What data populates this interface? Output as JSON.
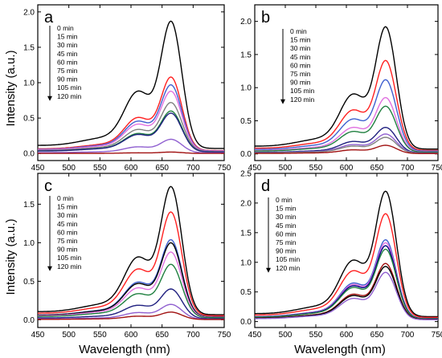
{
  "figure": {
    "xlabel": "Wavelength (nm)",
    "ylabel": "Intensity (a.u.)"
  },
  "chart_data": [
    {
      "panel": "a",
      "type": "line",
      "xlim": [
        450,
        750
      ],
      "ylim": [
        -0.1,
        2.1
      ],
      "xticks": [
        "450",
        "500",
        "550",
        "600",
        "650",
        "700",
        "750"
      ],
      "yticks": [
        "0.0",
        "0.5",
        "1.0",
        "1.5",
        "2.0"
      ],
      "legend": [
        "0 min",
        "15 min",
        "30 min",
        "45 min",
        "60 min",
        "75 min",
        "90 min",
        "105 min",
        "120 min"
      ],
      "series": [
        {
          "name": "0 min",
          "color": "#000000",
          "peak": 1.87
        },
        {
          "name": "15 min",
          "color": "#ff2020",
          "peak": 1.08
        },
        {
          "name": "30 min",
          "color": "#4060d0",
          "peak": 0.97
        },
        {
          "name": "45 min",
          "color": "#e070e0",
          "peak": 0.88
        },
        {
          "name": "60 min",
          "color": "#808080",
          "peak": 0.72
        },
        {
          "name": "75 min",
          "color": "#208040",
          "peak": 0.6
        },
        {
          "name": "90 min",
          "color": "#202080",
          "peak": 0.57
        },
        {
          "name": "105 min",
          "color": "#9060d0",
          "peak": 0.2
        },
        {
          "name": "120 min",
          "color": "#a01010",
          "peak": 0.02
        }
      ]
    },
    {
      "panel": "b",
      "type": "line",
      "xlim": [
        450,
        750
      ],
      "ylim": [
        -0.1,
        2.25
      ],
      "xticks": [
        "450",
        "500",
        "550",
        "600",
        "650",
        "700",
        "750"
      ],
      "yticks": [
        "0.0",
        "0.5",
        "1.0",
        "1.5",
        "2.0"
      ],
      "legend": [
        "0 min",
        "15 min",
        "30 min",
        "45 min",
        "60 min",
        "75 min",
        "90 min",
        "105 min",
        "120 min"
      ],
      "series": [
        {
          "name": "0 min",
          "color": "#000000",
          "peak": 1.92
        },
        {
          "name": "15 min",
          "color": "#ff2020",
          "peak": 1.41
        },
        {
          "name": "30 min",
          "color": "#4060d0",
          "peak": 1.12
        },
        {
          "name": "45 min",
          "color": "#e070e0",
          "peak": 0.85
        },
        {
          "name": "60 min",
          "color": "#208040",
          "peak": 0.72
        },
        {
          "name": "75 min",
          "color": "#202080",
          "peak": 0.4
        },
        {
          "name": "90 min",
          "color": "#9060d0",
          "peak": 0.3
        },
        {
          "name": "105 min",
          "color": "#808080",
          "peak": 0.25
        },
        {
          "name": "120 min",
          "color": "#a01010",
          "peak": 0.13
        }
      ]
    },
    {
      "panel": "c",
      "type": "line",
      "xlim": [
        450,
        750
      ],
      "ylim": [
        -0.1,
        1.9
      ],
      "xticks": [
        "450",
        "500",
        "550",
        "600",
        "650",
        "700",
        "750"
      ],
      "yticks": [
        "0.0",
        "0.5",
        "1.0",
        "1.5"
      ],
      "legend": [
        "0 min",
        "15 min",
        "30 min",
        "45 min",
        "60 min",
        "75 min",
        "90 min",
        "105 min",
        "120 min"
      ],
      "series": [
        {
          "name": "0 min",
          "color": "#000000",
          "peak": 1.73
        },
        {
          "name": "15 min",
          "color": "#ff2020",
          "peak": 1.4
        },
        {
          "name": "30 min",
          "color": "#4060d0",
          "peak": 1.04
        },
        {
          "name": "45 min",
          "color": "#000000",
          "peak": 1.0
        },
        {
          "name": "60 min",
          "color": "#e070e0",
          "peak": 0.88
        },
        {
          "name": "75 min",
          "color": "#208040",
          "peak": 0.72
        },
        {
          "name": "90 min",
          "color": "#202080",
          "peak": 0.4
        },
        {
          "name": "105 min",
          "color": "#9060d0",
          "peak": 0.2
        },
        {
          "name": "120 min",
          "color": "#a01010",
          "peak": 0.1
        }
      ]
    },
    {
      "panel": "d",
      "type": "line",
      "xlim": [
        450,
        750
      ],
      "ylim": [
        -0.1,
        2.5
      ],
      "xticks": [
        "450",
        "500",
        "550",
        "600",
        "650",
        "700",
        "750"
      ],
      "yticks": [
        "0.0",
        "0.5",
        "1.0",
        "1.5",
        "2.0",
        "2.5"
      ],
      "legend": [
        "0 min",
        "15 min",
        "30 min",
        "45 min",
        "60 min",
        "75 min",
        "90 min",
        "105 min",
        "120 min"
      ],
      "series": [
        {
          "name": "0 min",
          "color": "#000000",
          "peak": 2.2
        },
        {
          "name": "15 min",
          "color": "#ff2020",
          "peak": 1.82
        },
        {
          "name": "30 min",
          "color": "#4060d0",
          "peak": 1.38
        },
        {
          "name": "45 min",
          "color": "#e070e0",
          "peak": 1.33
        },
        {
          "name": "60 min",
          "color": "#000080",
          "peak": 1.28
        },
        {
          "name": "75 min",
          "color": "#208040",
          "peak": 1.22
        },
        {
          "name": "90 min",
          "color": "#a01010",
          "peak": 0.98
        },
        {
          "name": "105 min",
          "color": "#000000",
          "peak": 0.93
        },
        {
          "name": "120 min",
          "color": "#9060d0",
          "peak": 0.83
        }
      ]
    }
  ]
}
